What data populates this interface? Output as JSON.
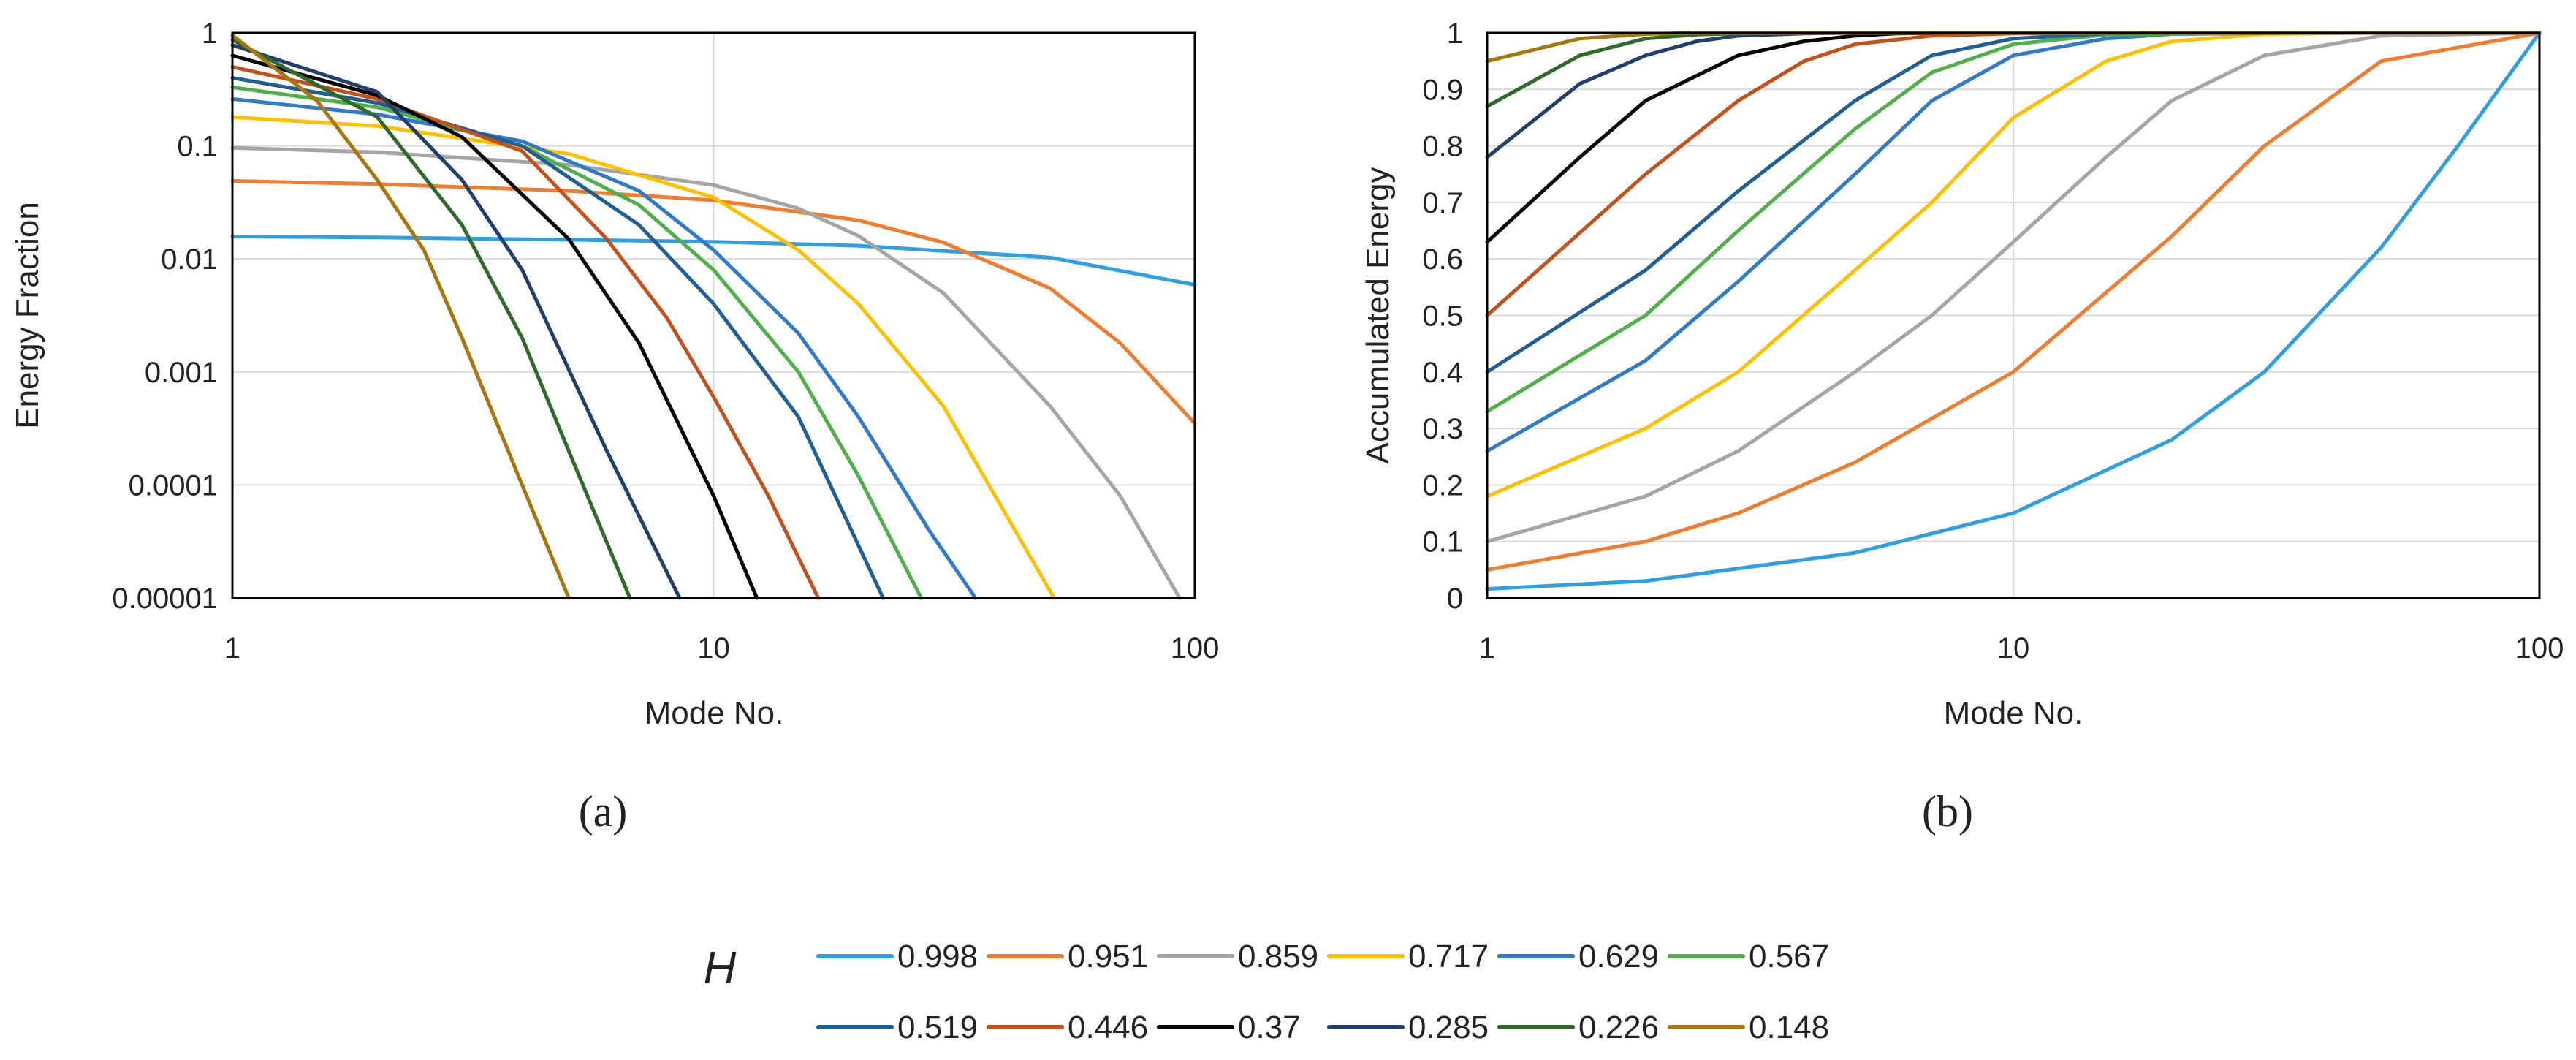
{
  "legend": {
    "title": "H",
    "entries": [
      {
        "label": "0.998",
        "color": "#2E9FE0"
      },
      {
        "label": "0.951",
        "color": "#F07D2D"
      },
      {
        "label": "0.859",
        "color": "#A5A5A5"
      },
      {
        "label": "0.717",
        "color": "#FFC000"
      },
      {
        "label": "0.629",
        "color": "#2F7BC8"
      },
      {
        "label": "0.567",
        "color": "#4FB04A"
      },
      {
        "label": "0.519",
        "color": "#1F5F94"
      },
      {
        "label": "0.446",
        "color": "#C4501A"
      },
      {
        "label": "0.37",
        "color": "#000000"
      },
      {
        "label": "0.285",
        "color": "#203F6B"
      },
      {
        "label": "0.226",
        "color": "#2F6A2A"
      },
      {
        "label": "0.148",
        "color": "#A8760E"
      }
    ]
  },
  "chart_data": [
    {
      "type": "line",
      "panel_label": "(a)",
      "xlabel": "Mode No.",
      "ylabel": "Energy Fraction",
      "xscale": "log",
      "yscale": "log",
      "xlim": [
        1,
        100
      ],
      "ylim": [
        1e-05,
        1
      ],
      "xticks": [
        {
          "v": 1,
          "label": "1"
        },
        {
          "v": 10,
          "label": "10"
        },
        {
          "v": 100,
          "label": "100"
        }
      ],
      "yticks": [
        {
          "v": 1e-05,
          "label": "0.00001"
        },
        {
          "v": 0.0001,
          "label": "0.0001"
        },
        {
          "v": 0.001,
          "label": "0.001"
        },
        {
          "v": 0.01,
          "label": "0.01"
        },
        {
          "v": 0.1,
          "label": "0.1"
        },
        {
          "v": 1,
          "label": "1"
        }
      ],
      "grid": true,
      "series": [
        {
          "name": "0.998",
          "color": "#2E9FE0",
          "x": [
            1,
            2,
            5,
            10,
            20,
            50,
            100
          ],
          "y": [
            0.0158,
            0.0155,
            0.0148,
            0.0142,
            0.0131,
            0.0103,
            0.0059
          ]
        },
        {
          "name": "0.951",
          "color": "#F07D2D",
          "x": [
            1,
            2,
            5,
            10,
            20,
            30,
            50,
            70,
            100
          ],
          "y": [
            0.049,
            0.046,
            0.04,
            0.033,
            0.022,
            0.014,
            0.0055,
            0.0018,
            0.00035
          ]
        },
        {
          "name": "0.859",
          "color": "#A5A5A5",
          "x": [
            1,
            2,
            5,
            10,
            15,
            20,
            30,
            50,
            70,
            93
          ],
          "y": [
            0.096,
            0.088,
            0.068,
            0.045,
            0.028,
            0.016,
            0.005,
            0.0005,
            8e-05,
            1e-05
          ]
        },
        {
          "name": "0.717",
          "color": "#FFC000",
          "x": [
            1,
            2,
            5,
            10,
            15,
            20,
            30,
            40,
            51
          ],
          "y": [
            0.18,
            0.15,
            0.085,
            0.035,
            0.012,
            0.004,
            0.0005,
            6e-05,
            1e-05
          ]
        },
        {
          "name": "0.629",
          "color": "#2F7BC8",
          "x": [
            1,
            2,
            4,
            7,
            10,
            15,
            20,
            28,
            35
          ],
          "y": [
            0.26,
            0.19,
            0.11,
            0.04,
            0.012,
            0.0022,
            0.0004,
            4e-05,
            1e-05
          ]
        },
        {
          "name": "0.567",
          "color": "#4FB04A",
          "x": [
            1,
            2,
            4,
            7,
            10,
            15,
            20,
            27
          ],
          "y": [
            0.33,
            0.22,
            0.1,
            0.03,
            0.008,
            0.001,
            0.00012,
            1e-05
          ]
        },
        {
          "name": "0.519",
          "color": "#1F5F94",
          "x": [
            1,
            2,
            4,
            7,
            10,
            15,
            22.5
          ],
          "y": [
            0.4,
            0.24,
            0.1,
            0.02,
            0.004,
            0.0004,
            1e-05
          ]
        },
        {
          "name": "0.446",
          "color": "#C4501A",
          "x": [
            1,
            2,
            4,
            6,
            8,
            10,
            13,
            16.5
          ],
          "y": [
            0.5,
            0.26,
            0.09,
            0.015,
            0.003,
            0.0006,
            8e-05,
            1e-05
          ]
        },
        {
          "name": "0.37",
          "color": "#000000",
          "x": [
            1,
            2,
            3,
            5,
            7,
            10,
            12.3
          ],
          "y": [
            0.63,
            0.28,
            0.12,
            0.015,
            0.0018,
            8e-05,
            1e-05
          ]
        },
        {
          "name": "0.285",
          "color": "#203F6B",
          "x": [
            1,
            2,
            3,
            4,
            6,
            8.5
          ],
          "y": [
            0.78,
            0.3,
            0.05,
            0.008,
            0.0002,
            1e-05
          ]
        },
        {
          "name": "0.226",
          "color": "#2F6A2A",
          "x": [
            1,
            2,
            3,
            4,
            5,
            6.7
          ],
          "y": [
            0.87,
            0.18,
            0.02,
            0.002,
            0.0002,
            1e-05
          ]
        },
        {
          "name": "0.148",
          "color": "#A8760E",
          "x": [
            1,
            1.5,
            2,
            2.5,
            3,
            4,
            5
          ],
          "y": [
            0.95,
            0.25,
            0.05,
            0.012,
            0.002,
            0.0001,
            1e-05
          ]
        }
      ]
    },
    {
      "type": "line",
      "panel_label": "(b)",
      "xlabel": "Mode No.",
      "ylabel": "Accumulated Energy",
      "xscale": "log",
      "yscale": "linear",
      "xlim": [
        1,
        100
      ],
      "ylim": [
        0,
        1
      ],
      "xticks": [
        {
          "v": 1,
          "label": "1"
        },
        {
          "v": 10,
          "label": "10"
        },
        {
          "v": 100,
          "label": "100"
        }
      ],
      "yticks": [
        {
          "v": 0,
          "label": "0"
        },
        {
          "v": 0.1,
          "label": "0.1"
        },
        {
          "v": 0.2,
          "label": "0.2"
        },
        {
          "v": 0.3,
          "label": "0.3"
        },
        {
          "v": 0.4,
          "label": "0.4"
        },
        {
          "v": 0.5,
          "label": "0.5"
        },
        {
          "v": 0.6,
          "label": "0.6"
        },
        {
          "v": 0.7,
          "label": "0.7"
        },
        {
          "v": 0.8,
          "label": "0.8"
        },
        {
          "v": 0.9,
          "label": "0.9"
        },
        {
          "v": 1,
          "label": "1"
        }
      ],
      "grid": true,
      "series": [
        {
          "name": "0.998",
          "color": "#2E9FE0",
          "x": [
            1,
            2,
            5,
            10,
            20,
            30,
            50,
            70,
            100
          ],
          "y": [
            0.016,
            0.03,
            0.08,
            0.15,
            0.28,
            0.4,
            0.62,
            0.8,
            1.0
          ]
        },
        {
          "name": "0.951",
          "color": "#F07D2D",
          "x": [
            1,
            2,
            3,
            5,
            10,
            20,
            30,
            50,
            100
          ],
          "y": [
            0.05,
            0.1,
            0.15,
            0.24,
            0.4,
            0.64,
            0.8,
            0.95,
            1.0
          ]
        },
        {
          "name": "0.859",
          "color": "#A5A5A5",
          "x": [
            1,
            2,
            3,
            5,
            7,
            10,
            15,
            20,
            30,
            50,
            100
          ],
          "y": [
            0.1,
            0.18,
            0.26,
            0.4,
            0.5,
            0.63,
            0.78,
            0.88,
            0.96,
            0.995,
            1.0
          ]
        },
        {
          "name": "0.717",
          "color": "#FFC000",
          "x": [
            1,
            2,
            3,
            5,
            7,
            10,
            15,
            20,
            30,
            50,
            100
          ],
          "y": [
            0.18,
            0.3,
            0.4,
            0.58,
            0.7,
            0.85,
            0.95,
            0.985,
            0.998,
            1.0,
            1.0
          ]
        },
        {
          "name": "0.629",
          "color": "#2F7BC8",
          "x": [
            1,
            2,
            3,
            5,
            7,
            10,
            15,
            20,
            35,
            100
          ],
          "y": [
            0.26,
            0.42,
            0.56,
            0.75,
            0.88,
            0.96,
            0.99,
            0.998,
            1.0,
            1.0
          ]
        },
        {
          "name": "0.567",
          "color": "#4FB04A",
          "x": [
            1,
            2,
            3,
            5,
            7,
            10,
            15,
            27,
            100
          ],
          "y": [
            0.33,
            0.5,
            0.65,
            0.83,
            0.93,
            0.98,
            0.997,
            1.0,
            1.0
          ]
        },
        {
          "name": "0.519",
          "color": "#1F5F94",
          "x": [
            1,
            2,
            3,
            5,
            7,
            10,
            15,
            22,
            100
          ],
          "y": [
            0.4,
            0.58,
            0.72,
            0.88,
            0.96,
            0.99,
            0.999,
            1.0,
            1.0
          ]
        },
        {
          "name": "0.446",
          "color": "#C4501A",
          "x": [
            1,
            2,
            3,
            4,
            5,
            7,
            10,
            16,
            100
          ],
          "y": [
            0.5,
            0.75,
            0.88,
            0.95,
            0.98,
            0.995,
            0.999,
            1.0,
            1.0
          ]
        },
        {
          "name": "0.37",
          "color": "#000000",
          "x": [
            1,
            1.5,
            2,
            3,
            4,
            5,
            6,
            8,
            12,
            100
          ],
          "y": [
            0.63,
            0.78,
            0.88,
            0.96,
            0.985,
            0.995,
            0.999,
            1.0,
            1.0,
            1.0
          ]
        },
        {
          "name": "0.285",
          "color": "#203F6B",
          "x": [
            1,
            1.5,
            2,
            2.5,
            3,
            4,
            5,
            8,
            100
          ],
          "y": [
            0.78,
            0.91,
            0.96,
            0.985,
            0.995,
            0.999,
            1.0,
            1.0,
            1.0
          ]
        },
        {
          "name": "0.226",
          "color": "#2F6A2A",
          "x": [
            1,
            1.5,
            2,
            2.5,
            3,
            4,
            6,
            100
          ],
          "y": [
            0.87,
            0.96,
            0.99,
            0.997,
            0.999,
            1.0,
            1.0,
            1.0
          ]
        },
        {
          "name": "0.148",
          "color": "#A8760E",
          "x": [
            1,
            1.5,
            2,
            2.5,
            3,
            5,
            100
          ],
          "y": [
            0.95,
            0.99,
            0.998,
            1.0,
            1.0,
            1.0,
            1.0
          ]
        }
      ]
    }
  ]
}
